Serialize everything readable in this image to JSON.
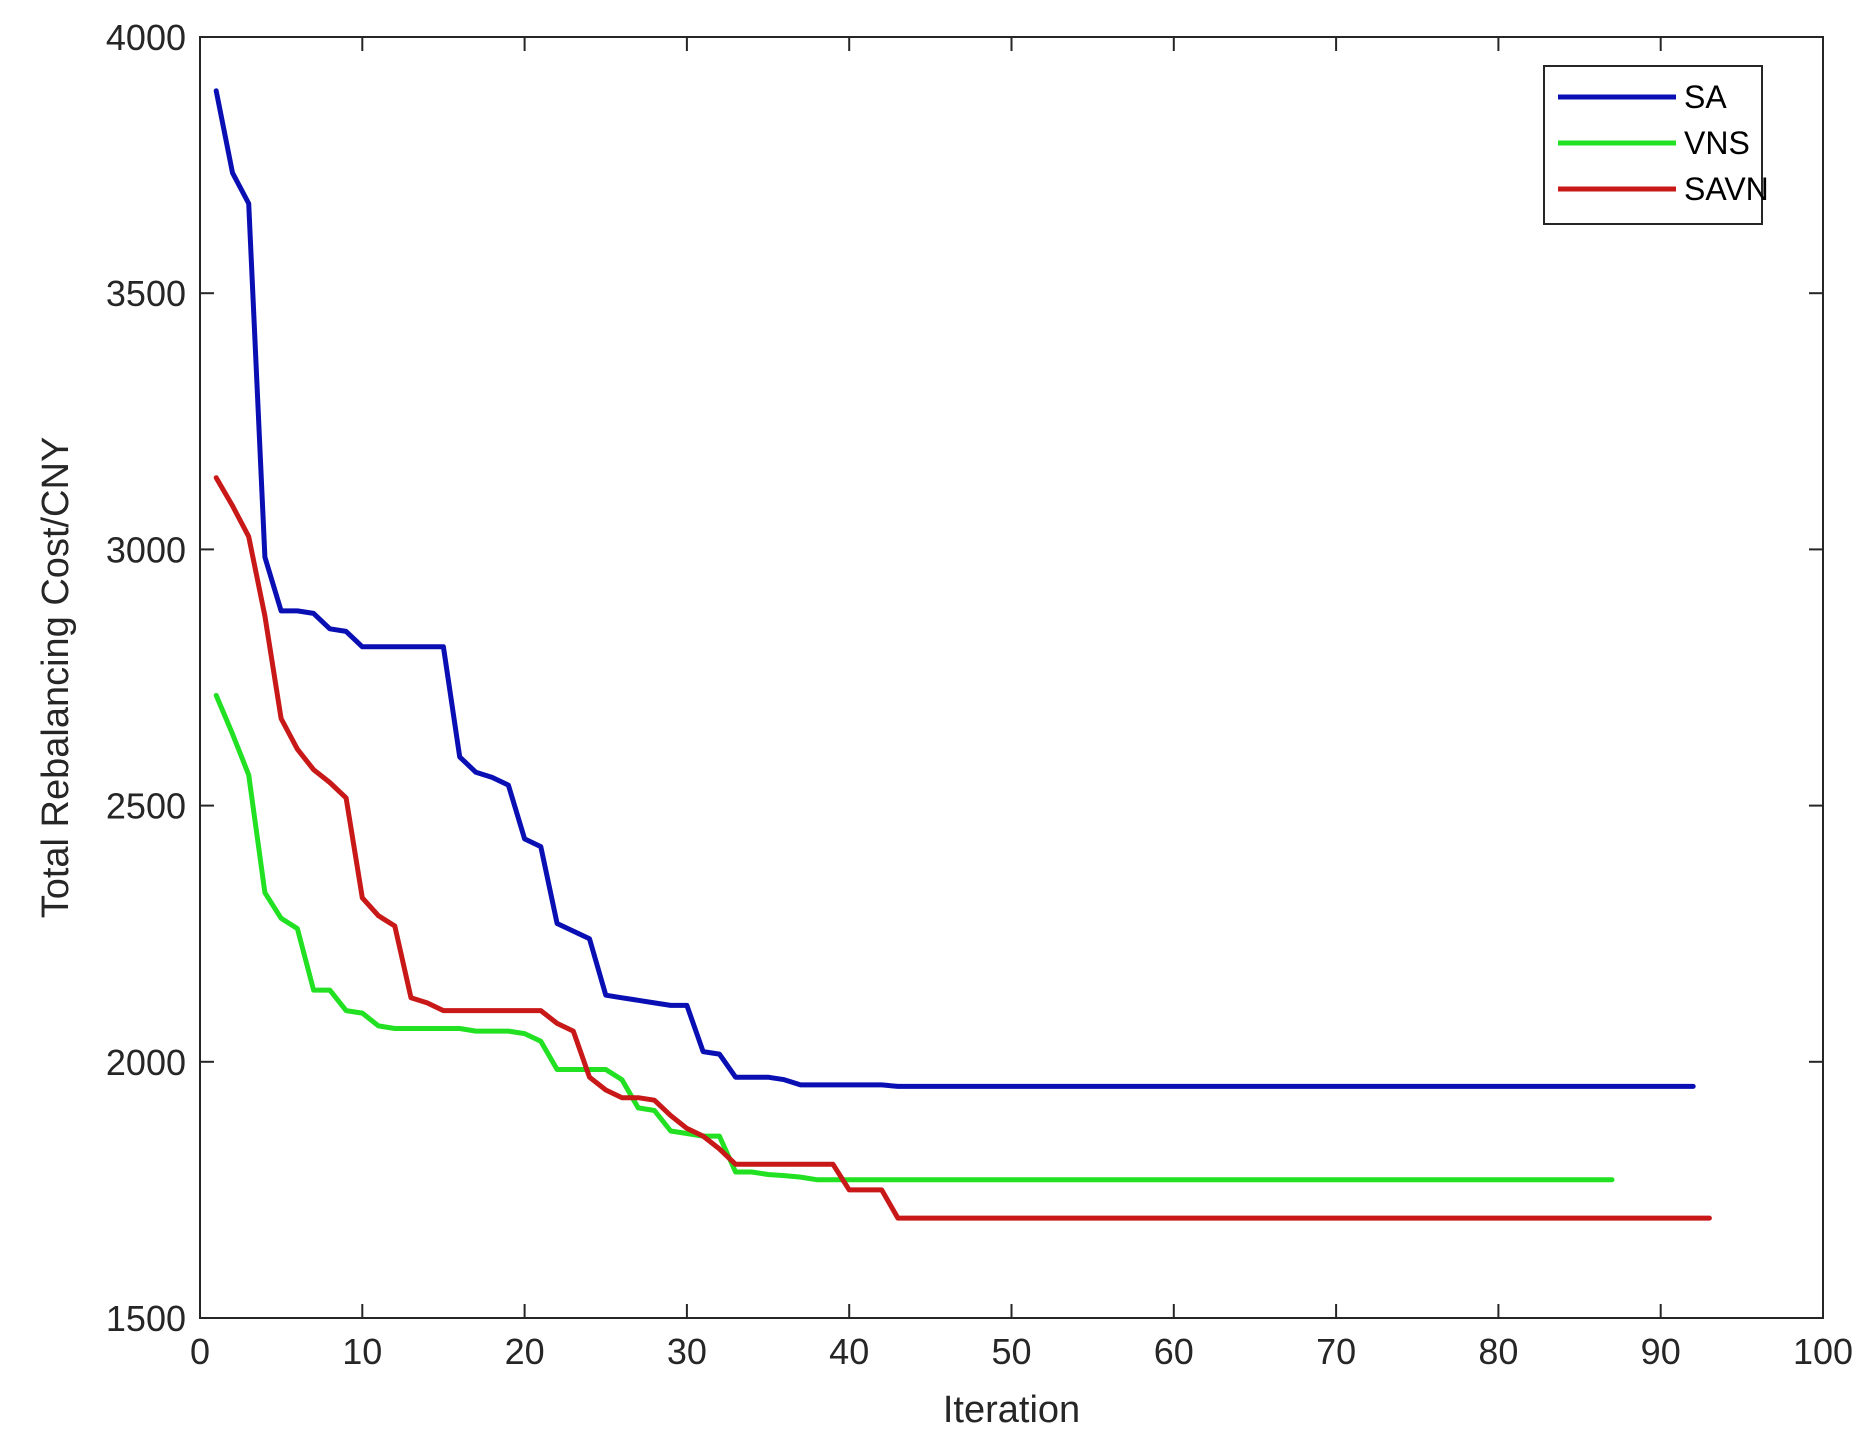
{
  "chart_data": {
    "type": "line",
    "title": "",
    "xlabel": "Iteration",
    "ylabel": "Total Rebalancing Cost/CNY",
    "xlim": [
      0,
      100
    ],
    "ylim": [
      1500,
      4000
    ],
    "xticks": [
      0,
      10,
      20,
      30,
      40,
      50,
      60,
      70,
      80,
      90,
      100
    ],
    "yticks": [
      1500,
      2000,
      2500,
      3000,
      3500,
      4000
    ],
    "grid": false,
    "legend_position": "top-right",
    "series": [
      {
        "name": "SA",
        "color": "#0a0fb4",
        "x": [
          1,
          2,
          3,
          4,
          5,
          6,
          7,
          8,
          9,
          10,
          11,
          12,
          13,
          14,
          15,
          16,
          17,
          18,
          19,
          20,
          21,
          22,
          23,
          24,
          25,
          26,
          27,
          28,
          29,
          30,
          31,
          32,
          33,
          34,
          35,
          36,
          37,
          38,
          39,
          40,
          41,
          42,
          43,
          44,
          50,
          60,
          70,
          80,
          92
        ],
        "y": [
          3895,
          3735,
          3675,
          2985,
          2880,
          2880,
          2875,
          2845,
          2840,
          2810,
          2810,
          2810,
          2810,
          2810,
          2810,
          2595,
          2565,
          2555,
          2540,
          2435,
          2420,
          2270,
          2255,
          2240,
          2130,
          2125,
          2120,
          2115,
          2110,
          2110,
          2020,
          2015,
          1970,
          1970,
          1970,
          1965,
          1955,
          1955,
          1955,
          1955,
          1955,
          1955,
          1952,
          1952,
          1952,
          1952,
          1952,
          1952,
          1952
        ]
      },
      {
        "name": "VNS",
        "color": "#22e022",
        "x": [
          1,
          2,
          3,
          4,
          5,
          6,
          7,
          8,
          9,
          10,
          11,
          12,
          13,
          14,
          15,
          16,
          17,
          18,
          19,
          20,
          21,
          22,
          23,
          24,
          25,
          26,
          27,
          28,
          29,
          30,
          31,
          32,
          33,
          34,
          35,
          36,
          37,
          38,
          39,
          40,
          50,
          60,
          70,
          80,
          87
        ],
        "y": [
          2715,
          2640,
          2560,
          2330,
          2280,
          2260,
          2140,
          2140,
          2100,
          2095,
          2070,
          2065,
          2065,
          2065,
          2065,
          2065,
          2060,
          2060,
          2060,
          2055,
          2040,
          1985,
          1985,
          1985,
          1985,
          1965,
          1910,
          1905,
          1865,
          1860,
          1855,
          1855,
          1785,
          1785,
          1780,
          1778,
          1775,
          1770,
          1770,
          1770,
          1770,
          1770,
          1770,
          1770,
          1770
        ]
      },
      {
        "name": "SAVN",
        "color": "#c81818",
        "x": [
          1,
          2,
          3,
          4,
          5,
          6,
          7,
          8,
          9,
          10,
          11,
          12,
          13,
          14,
          15,
          16,
          17,
          18,
          19,
          20,
          21,
          22,
          23,
          24,
          25,
          26,
          27,
          28,
          29,
          30,
          31,
          32,
          33,
          34,
          35,
          36,
          37,
          38,
          39,
          40,
          41,
          42,
          43,
          44,
          50,
          60,
          70,
          80,
          93
        ],
        "y": [
          3140,
          3085,
          3025,
          2870,
          2670,
          2610,
          2570,
          2545,
          2515,
          2320,
          2285,
          2265,
          2125,
          2115,
          2100,
          2100,
          2100,
          2100,
          2100,
          2100,
          2100,
          2075,
          2060,
          1970,
          1945,
          1930,
          1930,
          1925,
          1895,
          1870,
          1855,
          1830,
          1800,
          1800,
          1800,
          1800,
          1800,
          1800,
          1800,
          1750,
          1750,
          1750,
          1695,
          1695,
          1695,
          1695,
          1695,
          1695,
          1695
        ]
      }
    ]
  }
}
